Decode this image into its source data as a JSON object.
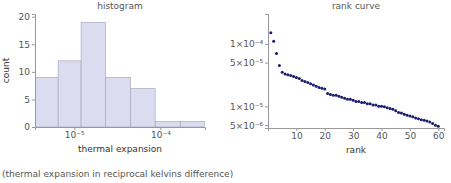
{
  "chart_data": [
    {
      "type": "histogram",
      "title": "histogram",
      "x_label": "thermal expansion",
      "y_label": "count",
      "bins": [
        3.5e-06,
        6.5e-06,
        1.2e-05,
        2.3e-05,
        4.5e-05,
        8.7e-05,
        0.00017,
        0.00033
      ],
      "values": [
        9,
        12,
        19,
        9,
        7,
        1,
        1
      ],
      "color": "#dcdcf0",
      "log": "x",
      "xlim": [
        3.5e-06,
        0.00033
      ],
      "xticks": [
        {
          "value": 1e-05,
          "label": "10⁻⁵"
        },
        {
          "value": 0.0001,
          "label": "10⁻⁴"
        }
      ],
      "ylim": [
        0,
        20.5
      ],
      "yticks": [
        0,
        5,
        10,
        15,
        20
      ]
    },
    {
      "type": "scatter",
      "title": "rank curve",
      "x_label": "rank",
      "x": [
        1,
        2,
        3,
        4,
        5,
        6,
        7,
        8,
        9,
        10,
        11,
        12,
        13,
        14,
        15,
        16,
        17,
        18,
        19,
        20,
        21,
        22,
        23,
        24,
        25,
        26,
        27,
        28,
        29,
        30,
        31,
        32,
        33,
        34,
        35,
        36,
        37,
        38,
        39,
        40,
        41,
        42,
        43,
        44,
        45,
        46,
        47,
        48,
        49,
        50,
        51,
        52,
        53,
        54,
        55,
        56,
        57,
        58,
        59,
        60
      ],
      "values": [
        0.00015,
        0.00011,
        7e-05,
        4.5e-05,
        3.5e-05,
        3.3e-05,
        3.2e-05,
        3.1e-05,
        3e-05,
        2.9e-05,
        2.8e-05,
        2.6e-05,
        2.5e-05,
        2.4e-05,
        2.3e-05,
        2.2e-05,
        2.1e-05,
        2e-05,
        1.95e-05,
        1.9e-05,
        1.6e-05,
        1.55e-05,
        1.5e-05,
        1.5e-05,
        1.45e-05,
        1.4e-05,
        1.35e-05,
        1.3e-05,
        1.3e-05,
        1.25e-05,
        1.2e-05,
        1.2e-05,
        1.15e-05,
        1.15e-05,
        1.1e-05,
        1.1e-05,
        1.05e-05,
        1.05e-05,
        1e-05,
        1e-05,
        9.8e-06,
        9.5e-06,
        9.2e-06,
        9e-06,
        8.5e-06,
        8e-06,
        7.8e-06,
        7.5e-06,
        7.2e-06,
        7e-06,
        6.8e-06,
        6.5e-06,
        6.3e-06,
        6.1e-06,
        6e-06,
        5.8e-06,
        5.6e-06,
        5.3e-06,
        5e-06,
        4.8e-06
      ],
      "color": "#1a1a6e",
      "marker": "circle",
      "log": "y",
      "xlim": [
        0,
        62
      ],
      "xticks": [
        10,
        20,
        30,
        40,
        50,
        60
      ],
      "ylim": [
        4.5e-06,
        0.0003
      ],
      "yticks": [
        {
          "value": 5e-06,
          "label": "5×10⁻⁶"
        },
        {
          "value": 1e-05,
          "label": "1×10⁻⁵"
        },
        {
          "value": 5e-05,
          "label": "5×10⁻⁵"
        },
        {
          "value": 0.0001,
          "label": "1×10⁻⁴"
        }
      ]
    }
  ],
  "caption": "(thermal expansion in reciprocal kelvins difference)"
}
